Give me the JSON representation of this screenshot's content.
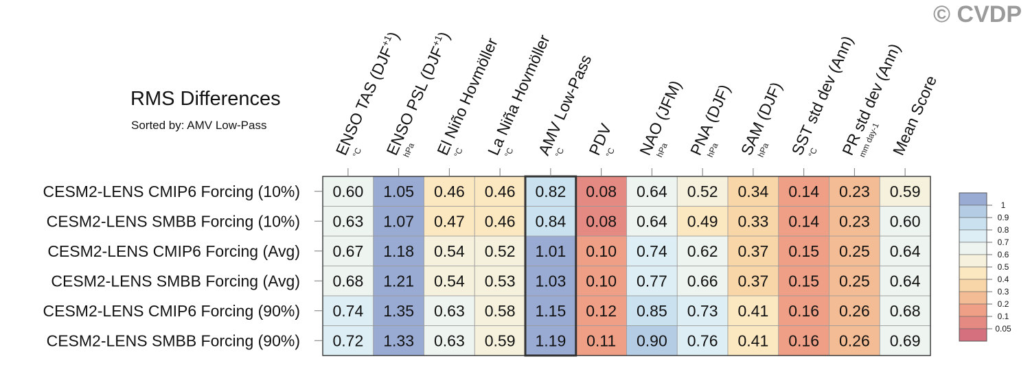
{
  "copyright": "© CVDP",
  "title": "RMS Differences",
  "subtitle": "Sorted by: AMV Low-Pass",
  "chart_data": {
    "type": "heatmap",
    "title": "RMS Differences",
    "subtitle": "Sorted by: AMV Low-Pass",
    "columns": [
      {
        "label": "ENSO TAS (DJF",
        "sup": "+1",
        "close": ")",
        "unit": "°C"
      },
      {
        "label": "ENSO PSL (DJF",
        "sup": "+1",
        "close": ")",
        "unit": "hPa"
      },
      {
        "label": "El Niño Hovmöller",
        "sup": "",
        "close": "",
        "unit": "°C"
      },
      {
        "label": "La Niña Hovmöller",
        "sup": "",
        "close": "",
        "unit": "°C"
      },
      {
        "label": "AMV Low-Pass",
        "sup": "",
        "close": "",
        "unit": "°C"
      },
      {
        "label": "PDV",
        "sup": "",
        "close": "",
        "unit": "°C"
      },
      {
        "label": "NAO (JFM)",
        "sup": "",
        "close": "",
        "unit": "hPa"
      },
      {
        "label": "PNA (DJF)",
        "sup": "",
        "close": "",
        "unit": "hPa"
      },
      {
        "label": "SAM (DJF)",
        "sup": "",
        "close": "",
        "unit": "hPa"
      },
      {
        "label": "SST std dev (Ann)",
        "sup": "",
        "close": "",
        "unit": "°C"
      },
      {
        "label": "PR std dev (Ann)",
        "sup": "",
        "close": "",
        "unit": "mm day-1"
      },
      {
        "label": "Mean Score",
        "sup": "",
        "close": "",
        "unit": ""
      }
    ],
    "rows": [
      "CESM2-LENS CMIP6 Forcing (10%)",
      "CESM2-LENS SMBB Forcing (10%)",
      "CESM2-LENS CMIP6 Forcing (Avg)",
      "CESM2-LENS SMBB Forcing (Avg)",
      "CESM2-LENS CMIP6 Forcing (90%)",
      "CESM2-LENS SMBB Forcing (90%)"
    ],
    "values": [
      [
        "0.60",
        "1.05",
        "0.46",
        "0.46",
        "0.82",
        "0.08",
        "0.64",
        "0.52",
        "0.34",
        "0.14",
        "0.23",
        "0.59"
      ],
      [
        "0.63",
        "1.07",
        "0.47",
        "0.46",
        "0.84",
        "0.08",
        "0.64",
        "0.49",
        "0.33",
        "0.14",
        "0.23",
        "0.60"
      ],
      [
        "0.67",
        "1.18",
        "0.54",
        "0.52",
        "1.01",
        "0.10",
        "0.74",
        "0.62",
        "0.37",
        "0.15",
        "0.25",
        "0.64"
      ],
      [
        "0.68",
        "1.21",
        "0.54",
        "0.53",
        "1.03",
        "0.10",
        "0.77",
        "0.66",
        "0.37",
        "0.15",
        "0.25",
        "0.64"
      ],
      [
        "0.74",
        "1.35",
        "0.63",
        "0.58",
        "1.15",
        "0.12",
        "0.85",
        "0.73",
        "0.41",
        "0.16",
        "0.26",
        "0.68"
      ],
      [
        "0.72",
        "1.33",
        "0.63",
        "0.59",
        "1.19",
        "0.11",
        "0.90",
        "0.76",
        "0.41",
        "0.16",
        "0.26",
        "0.69"
      ]
    ],
    "highlight_column": 4,
    "colorbar": {
      "labels": [
        "1",
        "0.9",
        "0.8",
        "0.7",
        "0.6",
        "0.5",
        "0.4",
        "0.3",
        "0.2",
        "0.1",
        "0.05"
      ],
      "colors": [
        "#99abd3",
        "#b4cce4",
        "#cae2ef",
        "#ddeef5",
        "#eef4ef",
        "#f5f1dc",
        "#fbe7c0",
        "#f9d6a8",
        "#f4bc94",
        "#ee9f85",
        "#e58a82",
        "#d5707f"
      ]
    }
  }
}
